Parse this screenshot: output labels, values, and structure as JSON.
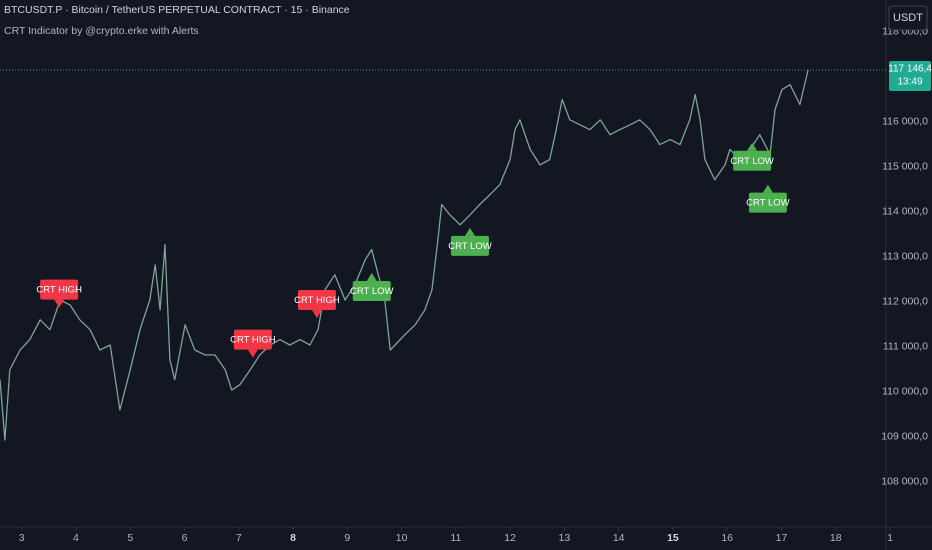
{
  "chart_data": {
    "type": "line",
    "title": "BTCUSDT.P · Bitcoin / TetherUS PERPETUAL CONTRACT · 15 · Binance",
    "subtitle": "CRT Indicator by @crypto.erke with Alerts",
    "currency_button": "USDT",
    "x": [
      2.6,
      2.69,
      2.78,
      2.97,
      3.15,
      3.34,
      3.52,
      3.71,
      3.89,
      4.07,
      4.26,
      4.44,
      4.63,
      4.81,
      5.0,
      5.18,
      5.36,
      5.46,
      5.55,
      5.64,
      5.73,
      5.82,
      6.01,
      6.19,
      6.38,
      6.56,
      6.75,
      6.87,
      7.02,
      7.21,
      7.39,
      7.58,
      7.76,
      7.94,
      8.13,
      8.31,
      8.46,
      8.59,
      8.77,
      8.96,
      9.14,
      9.33,
      9.45,
      9.57,
      9.69,
      9.79,
      9.88,
      10.06,
      10.25,
      10.43,
      10.56,
      10.67,
      10.74,
      10.89,
      11.08,
      11.26,
      11.44,
      11.63,
      11.81,
      12.0,
      12.09,
      12.18,
      12.37,
      12.55,
      12.73,
      12.83,
      12.96,
      13.1,
      13.29,
      13.47,
      13.66,
      13.84,
      14.02,
      14.21,
      14.39,
      14.58,
      14.76,
      14.95,
      15.13,
      15.31,
      15.41,
      15.5,
      15.59,
      15.77,
      15.96,
      16.05,
      16.24,
      16.42,
      16.6,
      16.79,
      16.88,
      17.01,
      17.16,
      17.34,
      17.49
    ],
    "series": [
      {
        "name": "BTCUSDT.P",
        "color": "#7fa39a",
        "values": [
          110270,
          108930,
          110490,
          110930,
          111160,
          111600,
          111380,
          112040,
          111930,
          111600,
          111380,
          110930,
          111040,
          109600,
          110490,
          111380,
          112040,
          112820,
          111820,
          113270,
          110710,
          110270,
          111490,
          110930,
          110820,
          110820,
          110490,
          110040,
          110160,
          110490,
          110820,
          111040,
          111160,
          111040,
          111160,
          111040,
          111380,
          112270,
          112600,
          112040,
          112380,
          112930,
          113160,
          112600,
          112040,
          110930,
          111040,
          111270,
          111490,
          111820,
          112270,
          113380,
          114160,
          113930,
          113710,
          113930,
          114160,
          114380,
          114600,
          115160,
          115820,
          116040,
          115380,
          115040,
          115160,
          115710,
          116490,
          116040,
          115930,
          115820,
          116040,
          115710,
          115820,
          115930,
          116040,
          115820,
          115490,
          115600,
          115490,
          116040,
          116600,
          116040,
          115160,
          114710,
          115040,
          115380,
          115160,
          115380,
          115710,
          115270,
          116270,
          116710,
          116820,
          116380,
          117146.4
        ]
      }
    ],
    "signals": [
      {
        "label": "CRT HIGH",
        "kind": "high",
        "color": "#f23645",
        "x": 3.69,
        "y": 111870
      },
      {
        "label": "CRT HIGH",
        "kind": "high",
        "color": "#f23645",
        "x": 7.26,
        "y": 110760
      },
      {
        "label": "CRT HIGH",
        "kind": "high",
        "color": "#f23645",
        "x": 8.44,
        "y": 111640
      },
      {
        "label": "CRT LOW",
        "kind": "low",
        "color": "#4caf50",
        "x": 9.45,
        "y": 112640
      },
      {
        "label": "CRT LOW",
        "kind": "low",
        "color": "#4caf50",
        "x": 11.26,
        "y": 113640
      },
      {
        "label": "CRT LOW",
        "kind": "low",
        "color": "#4caf50",
        "x": 16.46,
        "y": 115530
      },
      {
        "label": "CRT LOW",
        "kind": "low",
        "color": "#4caf50",
        "x": 16.75,
        "y": 114600
      }
    ],
    "price_line": {
      "value": 117146.4,
      "label": "117 146,4",
      "countdown": "13:49",
      "color": "#22ab94"
    },
    "xlim": [
      2.6,
      19.0
    ],
    "ylim": [
      107000,
      118700
    ],
    "xticks": [
      3,
      4,
      5,
      6,
      7,
      8,
      9,
      10,
      11,
      12,
      13,
      14,
      15,
      16,
      17,
      18,
      {
        "value": 19,
        "label": "1"
      }
    ],
    "bold_xticks": [
      8,
      15
    ],
    "yticks": [
      {
        "value": 108000,
        "label": "108 000,0"
      },
      {
        "value": 109000,
        "label": "109 000,0"
      },
      {
        "value": 110000,
        "label": "110 000,0"
      },
      {
        "value": 111000,
        "label": "111 000,0"
      },
      {
        "value": 112000,
        "label": "112 000,0"
      },
      {
        "value": 113000,
        "label": "113 000,0"
      },
      {
        "value": 114000,
        "label": "114 000,0"
      },
      {
        "value": 115000,
        "label": "115 000,0"
      },
      {
        "value": 116000,
        "label": "116 000,0"
      },
      {
        "value": 118000,
        "label": "118 000,0"
      }
    ],
    "grid": false
  }
}
